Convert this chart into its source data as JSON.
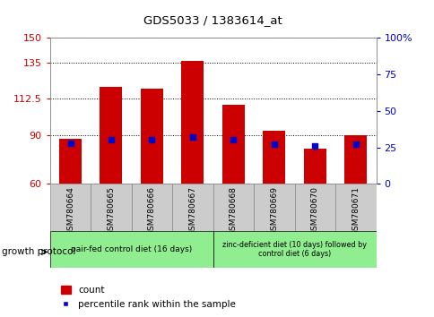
{
  "title": "GDS5033 / 1383614_at",
  "categories": [
    "GSM780664",
    "GSM780665",
    "GSM780666",
    "GSM780667",
    "GSM780668",
    "GSM780669",
    "GSM780670",
    "GSM780671"
  ],
  "bar_values": [
    88,
    120,
    119,
    136,
    109,
    93,
    82,
    90
  ],
  "percentile_values": [
    28,
    30,
    30,
    32,
    30,
    27,
    26,
    27
  ],
  "bar_color": "#cc0000",
  "percentile_color": "#0000cc",
  "ylim_left": [
    60,
    150
  ],
  "ylim_right": [
    0,
    100
  ],
  "yticks_left": [
    60,
    90,
    112.5,
    135,
    150
  ],
  "yticks_right": [
    0,
    25,
    50,
    75,
    100
  ],
  "ylabel_left_color": "#cc0000",
  "ylabel_right_color": "#0000cc",
  "group1_label": "pair-fed control diet (16 days)",
  "group2_label": "zinc-deficient diet (10 days) followed by\ncontrol diet (6 days)",
  "group1_indices": [
    0,
    1,
    2,
    3
  ],
  "group2_indices": [
    4,
    5,
    6,
    7
  ],
  "group1_color": "#90ee90",
  "group2_color": "#90ee90",
  "tickbox_color": "#cccccc",
  "protocol_label": "growth protocol",
  "legend_count_label": "count",
  "legend_percentile_label": "percentile rank within the sample",
  "background_color": "#ffffff"
}
